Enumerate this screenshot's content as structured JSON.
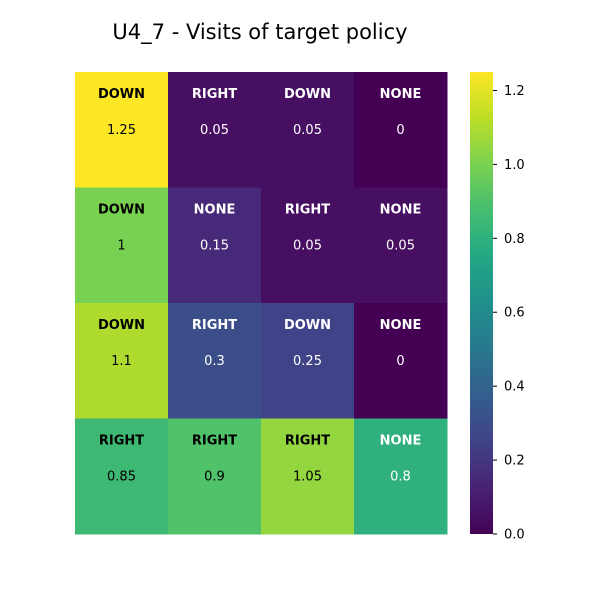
{
  "chart_data": {
    "type": "heatmap",
    "title": "U4_7 - Visits of target policy",
    "rows": 4,
    "cols": 4,
    "values": [
      [
        1.25,
        0.05,
        0.05,
        0
      ],
      [
        1,
        0.15,
        0.05,
        0.05
      ],
      [
        1.1,
        0.3,
        0.25,
        0
      ],
      [
        0.85,
        0.9,
        1.05,
        0.8
      ]
    ],
    "value_labels": [
      [
        "1.25",
        "0.05",
        "0.05",
        "0"
      ],
      [
        "1",
        "0.15",
        "0.05",
        "0.05"
      ],
      [
        "1.1",
        "0.3",
        "0.25",
        "0"
      ],
      [
        "0.85",
        "0.9",
        "1.05",
        "0.8"
      ]
    ],
    "actions": [
      [
        "DOWN",
        "RIGHT",
        "DOWN",
        "NONE"
      ],
      [
        "DOWN",
        "NONE",
        "RIGHT",
        "NONE"
      ],
      [
        "DOWN",
        "RIGHT",
        "DOWN",
        "NONE"
      ],
      [
        "RIGHT",
        "RIGHT",
        "RIGHT",
        "NONE"
      ]
    ],
    "colormap": "viridis",
    "vmin": 0,
    "vmax": 1.25,
    "colorbar": {
      "ticks": [
        0.0,
        0.2,
        0.4,
        0.6,
        0.8,
        1.0,
        1.2
      ],
      "tick_labels": [
        "0.0",
        "0.2",
        "0.4",
        "0.6",
        "0.8",
        "1.0",
        "1.2"
      ],
      "placement": "right"
    },
    "grid": false
  }
}
